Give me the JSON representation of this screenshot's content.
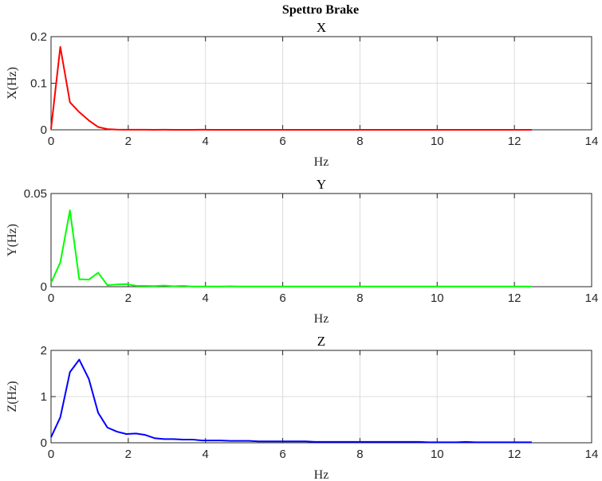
{
  "figure": {
    "title": "Spettro Brake"
  },
  "chart_data": [
    {
      "type": "line",
      "title": "X",
      "xlabel": "Hz",
      "ylabel": "X(Hz)",
      "xlim": [
        0,
        14
      ],
      "ylim": [
        0,
        0.2
      ],
      "xticks": [
        0,
        2,
        4,
        6,
        8,
        10,
        12,
        14
      ],
      "xtick_labels": [
        "0",
        "2",
        "4",
        "6",
        "8",
        "10",
        "12",
        "14"
      ],
      "yticks": [
        0,
        0.1,
        0.2
      ],
      "ytick_labels": [
        "0",
        "0.1",
        "0.2"
      ],
      "grid": true,
      "color": "#ff0000",
      "series": [
        {
          "x": [
            0,
            0.24,
            0.49,
            0.73,
            0.98,
            1.22,
            1.46,
            1.71,
            1.95,
            2.2,
            2.44,
            2.68,
            2.93,
            3.17,
            3.42,
            3.66,
            3.91,
            4.15,
            4.39,
            4.64,
            4.88,
            5.13,
            5.37,
            5.62,
            5.86,
            6.1,
            6.35,
            6.59,
            6.84,
            7.08,
            7.32,
            7.57,
            7.81,
            8.06,
            8.3,
            8.54,
            8.79,
            9.03,
            9.28,
            9.52,
            9.77,
            10.01,
            10.25,
            10.5,
            10.74,
            10.99,
            11.23,
            11.47,
            11.72,
            11.96,
            12.21,
            12.45
          ],
          "values": [
            0.002,
            0.178,
            0.059,
            0.038,
            0.02,
            0.006,
            0.0015,
            0.0005,
            0.0003,
            0.0002,
            0.0002,
            0.0001,
            0.0002,
            0.0001,
            0.0001,
            0.0001,
            0.0002,
            0.0001,
            0.0001,
            0.0001,
            0.0001,
            0.0001,
            0.0001,
            0.0001,
            0.0001,
            0.0001,
            0.0001,
            0.0001,
            0.0001,
            0.0001,
            0.0001,
            0.0001,
            0.0001,
            0.0001,
            0.0001,
            0.0001,
            0.0001,
            0.0001,
            0.0001,
            0.0001,
            0.0001,
            0.0001,
            0.0001,
            0.0001,
            0.0001,
            0.0001,
            0.0001,
            0.0001,
            0.0001,
            0.0001,
            0.0001,
            0.0001
          ]
        }
      ]
    },
    {
      "type": "line",
      "title": "Y",
      "xlabel": "Hz",
      "ylabel": "Y(Hz)",
      "xlim": [
        0,
        14
      ],
      "ylim": [
        0,
        0.05
      ],
      "xticks": [
        0,
        2,
        4,
        6,
        8,
        10,
        12,
        14
      ],
      "xtick_labels": [
        "0",
        "2",
        "4",
        "6",
        "8",
        "10",
        "12",
        "14"
      ],
      "yticks": [
        0,
        0.05
      ],
      "ytick_labels": [
        "0",
        "0.05"
      ],
      "grid": true,
      "color": "#00ff00",
      "series": [
        {
          "x": [
            0,
            0.24,
            0.49,
            0.73,
            0.98,
            1.22,
            1.46,
            1.71,
            1.95,
            2.2,
            2.44,
            2.68,
            2.93,
            3.17,
            3.42,
            3.66,
            3.91,
            4.15,
            4.39,
            4.64,
            4.88,
            5.13,
            5.37,
            5.62,
            5.86,
            6.1,
            6.35,
            6.59,
            6.84,
            7.08,
            7.32,
            7.57,
            7.81,
            8.06,
            8.3,
            8.54,
            8.79,
            9.03,
            9.28,
            9.52,
            9.77,
            10.01,
            10.25,
            10.5,
            10.74,
            10.99,
            11.23,
            11.47,
            11.72,
            11.96,
            12.21,
            12.45
          ],
          "values": [
            0.002,
            0.013,
            0.041,
            0.004,
            0.0038,
            0.0075,
            0.0008,
            0.0012,
            0.0014,
            0.0005,
            0.0004,
            0.0003,
            0.0006,
            0.0002,
            0.0004,
            0.0001,
            0.0001,
            0.0001,
            0.0001,
            0.0002,
            0.0001,
            0.0001,
            0.0001,
            0.0001,
            0.0001,
            0.0001,
            0.0001,
            0.0001,
            0.0001,
            0.0001,
            0.0001,
            0.0001,
            0.0001,
            0.0001,
            0.0001,
            0.0001,
            0.0001,
            0.0001,
            0.0001,
            0.0001,
            0.0001,
            0.0001,
            0.0001,
            0.0001,
            0.0001,
            0.0001,
            0.0001,
            0.0001,
            0.0001,
            0.0001,
            0.0001,
            0.0001
          ]
        }
      ]
    },
    {
      "type": "line",
      "title": "Z",
      "xlabel": "Hz",
      "ylabel": "Z(Hz)",
      "xlim": [
        0,
        14
      ],
      "ylim": [
        0,
        2
      ],
      "xticks": [
        0,
        2,
        4,
        6,
        8,
        10,
        12,
        14
      ],
      "xtick_labels": [
        "0",
        "2",
        "4",
        "6",
        "8",
        "10",
        "12",
        "14"
      ],
      "yticks": [
        0,
        1,
        2
      ],
      "ytick_labels": [
        "0",
        "1",
        "2"
      ],
      "grid": true,
      "color": "#0000ff",
      "series": [
        {
          "x": [
            0,
            0.24,
            0.49,
            0.73,
            0.98,
            1.22,
            1.46,
            1.71,
            1.95,
            2.2,
            2.44,
            2.68,
            2.93,
            3.17,
            3.42,
            3.66,
            3.91,
            4.15,
            4.39,
            4.64,
            4.88,
            5.13,
            5.37,
            5.62,
            5.86,
            6.1,
            6.35,
            6.59,
            6.84,
            7.08,
            7.32,
            7.57,
            7.81,
            8.06,
            8.3,
            8.54,
            8.79,
            9.03,
            9.28,
            9.52,
            9.77,
            10.01,
            10.25,
            10.5,
            10.74,
            10.99,
            11.23,
            11.47,
            11.72,
            11.96,
            12.21,
            12.45
          ],
          "values": [
            0.12,
            0.55,
            1.53,
            1.8,
            1.38,
            0.65,
            0.33,
            0.24,
            0.19,
            0.2,
            0.17,
            0.1,
            0.08,
            0.08,
            0.07,
            0.07,
            0.05,
            0.05,
            0.05,
            0.04,
            0.04,
            0.04,
            0.03,
            0.03,
            0.03,
            0.03,
            0.03,
            0.03,
            0.02,
            0.02,
            0.02,
            0.02,
            0.02,
            0.02,
            0.02,
            0.02,
            0.02,
            0.02,
            0.02,
            0.02,
            0.01,
            0.01,
            0.01,
            0.01,
            0.02,
            0.01,
            0.01,
            0.01,
            0.01,
            0.01,
            0.01,
            0.01
          ]
        }
      ]
    }
  ]
}
